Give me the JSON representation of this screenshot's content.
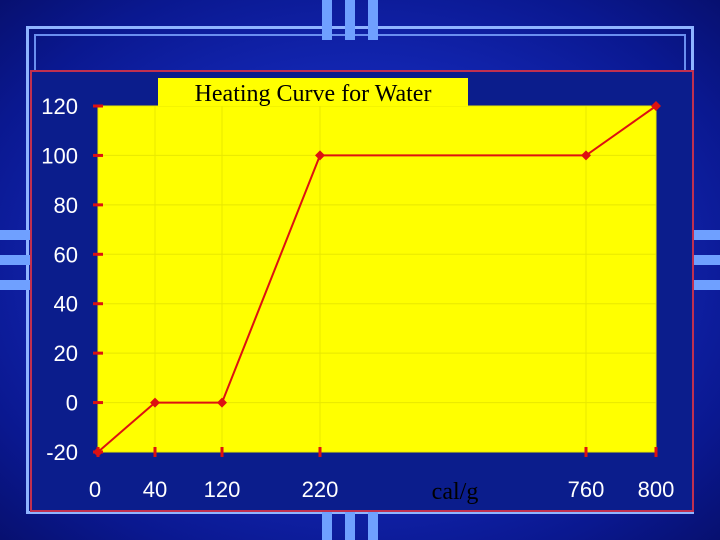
{
  "chart_data": {
    "type": "line",
    "title": "Heating Curve for Water",
    "xlabel": "cal/g",
    "ylabel": "",
    "x_tick_labels": [
      "0",
      "40",
      "120",
      "220",
      "760",
      "800"
    ],
    "y_ticks": [
      120,
      100,
      80,
      60,
      40,
      20,
      0,
      -20
    ],
    "ylim": [
      -20,
      120
    ],
    "grid": true,
    "series": [
      {
        "name": "",
        "x": [
          0,
          40,
          120,
          220,
          760,
          800
        ],
        "y": [
          -20,
          0,
          0,
          100,
          100,
          120
        ]
      }
    ],
    "colors": {
      "plot_bg": "#ffff00",
      "line": "#dd1111",
      "axis_text": "#ffffff",
      "title_text": "#000000"
    }
  }
}
